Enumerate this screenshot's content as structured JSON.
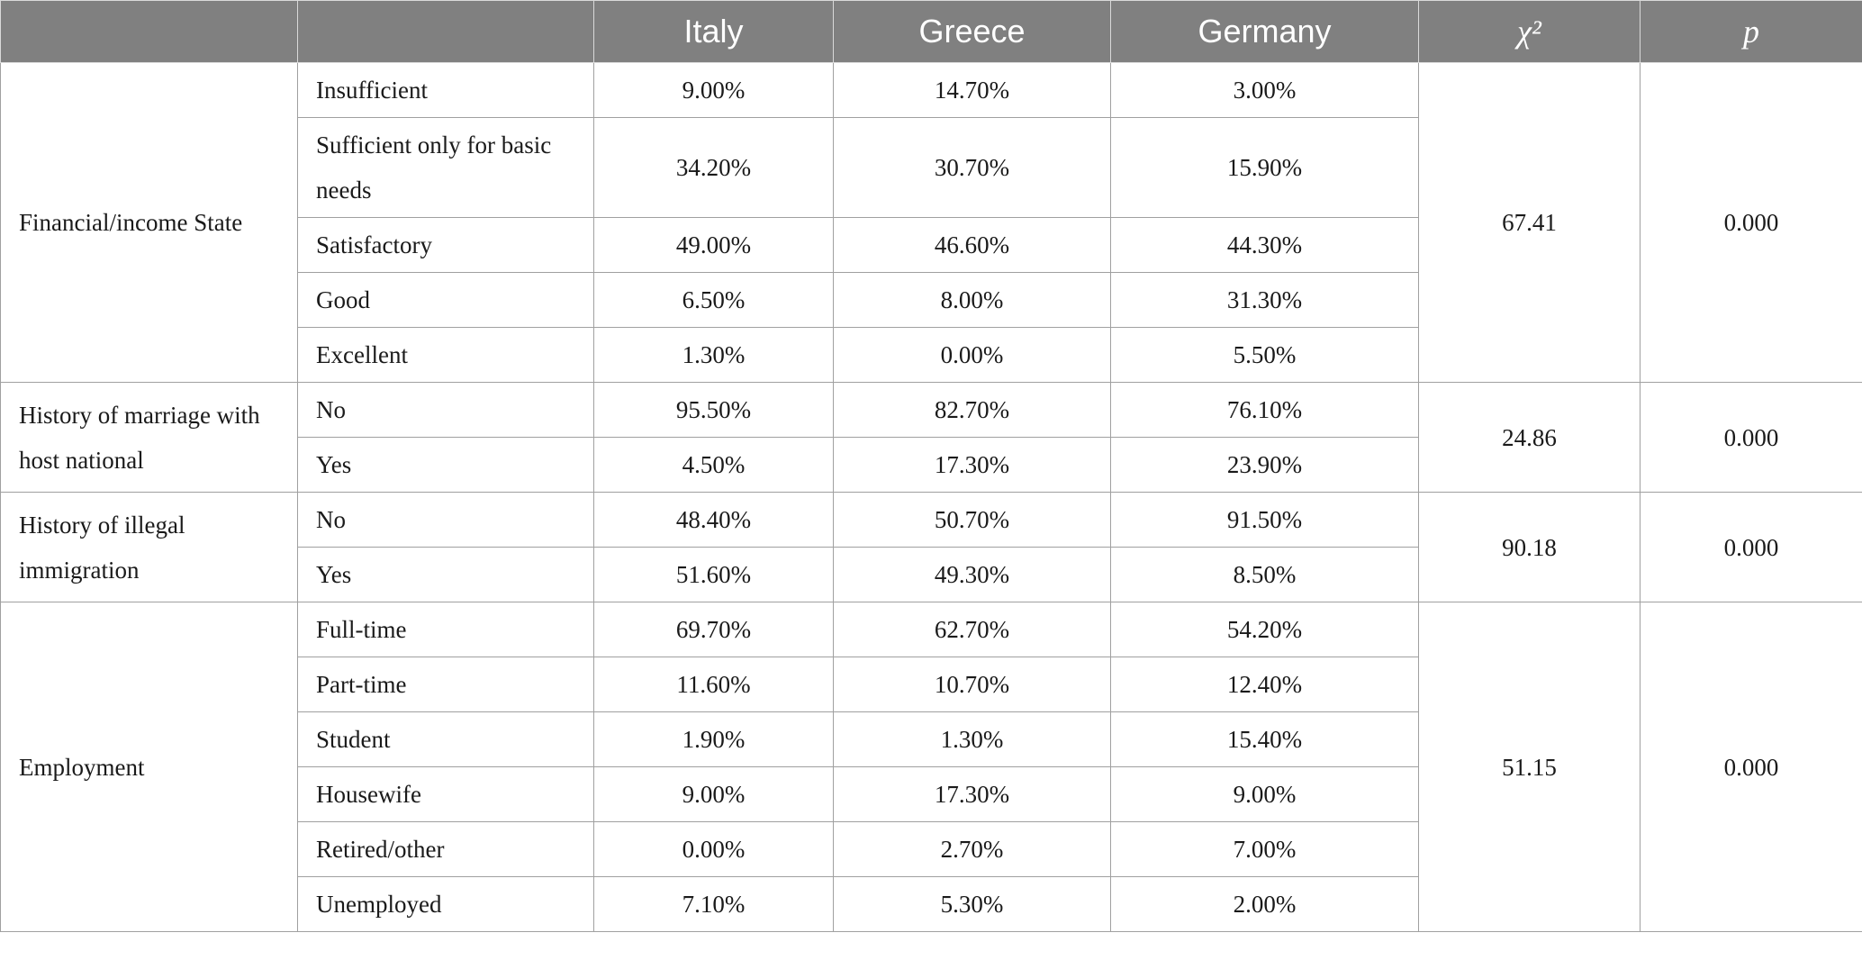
{
  "header": {
    "blank1": "",
    "blank2": "",
    "italy": "Italy",
    "greece": "Greece",
    "germany": "Germany",
    "chi": "χ²",
    "p": "p"
  },
  "groups": [
    {
      "category": "Financial/income State",
      "chi2": "67.41",
      "p": "0.000",
      "rows": [
        {
          "label": "Insufficient",
          "italy": "9.00%",
          "greece": "14.70%",
          "germany": "3.00%"
        },
        {
          "label": "Sufficient only for basic needs",
          "italy": "34.20%",
          "greece": "30.70%",
          "germany": "15.90%"
        },
        {
          "label": "Satisfactory",
          "italy": "49.00%",
          "greece": "46.60%",
          "germany": "44.30%"
        },
        {
          "label": "Good",
          "italy": "6.50%",
          "greece": "8.00%",
          "germany": "31.30%"
        },
        {
          "label": "Excellent",
          "italy": "1.30%",
          "greece": "0.00%",
          "germany": "5.50%"
        }
      ]
    },
    {
      "category": "History of marriage with host national",
      "chi2": "24.86",
      "p": "0.000",
      "rows": [
        {
          "label": "No",
          "italy": "95.50%",
          "greece": "82.70%",
          "germany": "76.10%"
        },
        {
          "label": "Yes",
          "italy": "4.50%",
          "greece": "17.30%",
          "germany": "23.90%"
        }
      ]
    },
    {
      "category": "History of illegal immigration",
      "chi2": "90.18",
      "p": "0.000",
      "rows": [
        {
          "label": "No",
          "italy": "48.40%",
          "greece": "50.70%",
          "germany": "91.50%"
        },
        {
          "label": "Yes",
          "italy": "51.60%",
          "greece": "49.30%",
          "germany": "8.50%"
        }
      ]
    },
    {
      "category": "Employment",
      "chi2": "51.15",
      "p": "0.000",
      "rows": [
        {
          "label": "Full-time",
          "italy": "69.70%",
          "greece": "62.70%",
          "germany": "54.20%"
        },
        {
          "label": "Part-time",
          "italy": "11.60%",
          "greece": "10.70%",
          "germany": "12.40%"
        },
        {
          "label": "Student",
          "italy": "1.90%",
          "greece": "1.30%",
          "germany": "15.40%"
        },
        {
          "label": "Housewife",
          "italy": "9.00%",
          "greece": "17.30%",
          "germany": "9.00%"
        },
        {
          "label": "Retired/other",
          "italy": "0.00%",
          "greece": "2.70%",
          "germany": "7.00%"
        },
        {
          "label": "Unemployed",
          "italy": "7.10%",
          "greece": "5.30%",
          "germany": "2.00%"
        }
      ]
    }
  ]
}
